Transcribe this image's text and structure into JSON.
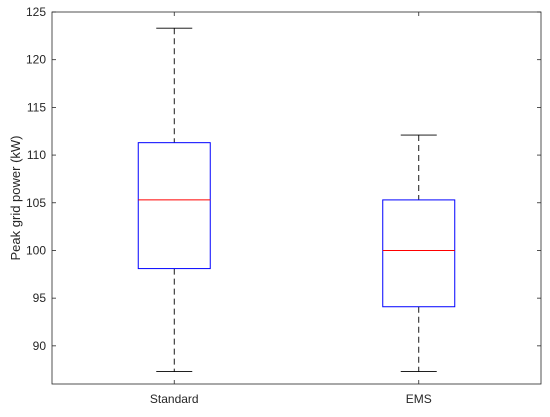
{
  "chart_data": {
    "type": "boxplot",
    "title": "",
    "xlabel": "",
    "ylabel": "Peak grid power (kW)",
    "categories": [
      "Standard",
      "EMS"
    ],
    "boxes": [
      {
        "category": "Standard",
        "whisker_low": 87.3,
        "q1": 98.1,
        "median": 105.3,
        "q3": 111.3,
        "whisker_high": 123.3
      },
      {
        "category": "EMS",
        "whisker_low": 87.3,
        "q1": 94.1,
        "median": 100.0,
        "q3": 105.3,
        "whisker_high": 112.1
      }
    ],
    "ylim": [
      86,
      125
    ],
    "yticks": [
      90,
      95,
      100,
      105,
      110,
      115,
      120,
      125
    ],
    "grid": false,
    "legend": "none",
    "colors": {
      "box": "#0000ff",
      "median": "#ff0000",
      "whisker": "#000000",
      "axis": "#262626"
    }
  }
}
